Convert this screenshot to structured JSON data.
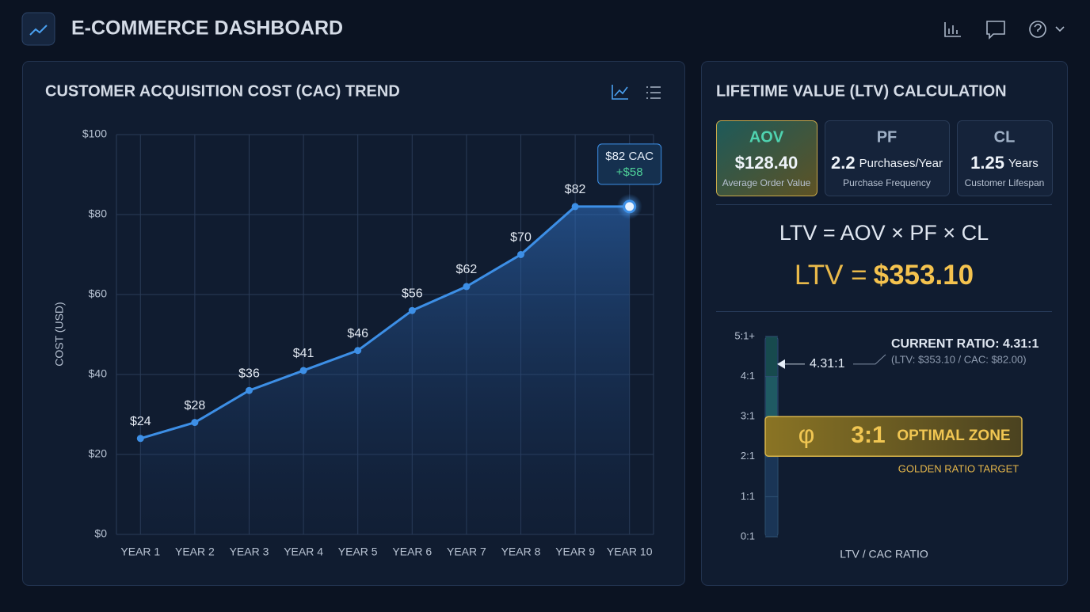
{
  "header": {
    "title": "E-COMMERCE DASHBOARD"
  },
  "chart_data": {
    "type": "line",
    "title": "CUSTOMER ACQUISITION COST (CAC) TREND",
    "ylabel": "COST (USD)",
    "categories": [
      "YEAR 1",
      "YEAR 2",
      "YEAR 3",
      "YEAR 4",
      "YEAR 5",
      "YEAR 6",
      "YEAR 7",
      "YEAR 8",
      "YEAR 9",
      "YEAR 10"
    ],
    "values": [
      24,
      28,
      36,
      41,
      46,
      56,
      62,
      70,
      82,
      82
    ],
    "value_labels": [
      "$24",
      "$28",
      "$36",
      "$41",
      "$46",
      "$56",
      "$62",
      "$70",
      "$82",
      "$82 CAC"
    ],
    "annotation": "+$58",
    "color": "#3d8fe6",
    "ylim": [
      0,
      100
    ],
    "yticks": [
      {
        "value": 0,
        "label": "$0"
      },
      {
        "value": 20,
        "label": "$20"
      },
      {
        "value": 40,
        "label": "$40"
      },
      {
        "value": 60,
        "label": "$60"
      },
      {
        "value": 80,
        "label": "$80"
      },
      {
        "value": 100,
        "label": "$100"
      }
    ],
    "grid": true
  },
  "ltv_panel": {
    "title": "LIFETIME VALUE (LTV) CALCULATION",
    "cards": [
      {
        "abbr": "AOV",
        "value": "$128.40",
        "description": "Average Order Value"
      },
      {
        "abbr": "PF",
        "value": "2.2",
        "unit": "Purchases/Year",
        "description": "Purchase Frequency"
      },
      {
        "abbr": "CL",
        "value": "1.25",
        "unit": "Years",
        "description": "Customer Lifespan"
      }
    ],
    "formula": "LTV = AOV × PF × CL",
    "result": {
      "label": "LTV =",
      "value": "$353.10"
    },
    "gauge": {
      "ylim": [
        0,
        5
      ],
      "ticks": [
        {
          "value": 0,
          "label": "0:1"
        },
        {
          "value": 1,
          "label": "1:1"
        },
        {
          "value": 2,
          "label": "2:1"
        },
        {
          "value": 3,
          "label": "3:1"
        },
        {
          "value": 4,
          "label": "4:1"
        },
        {
          "value": 5,
          "label": "5:1+"
        }
      ],
      "value": 4.31,
      "value_label": "4.31:1",
      "current_title": "CURRENT RATIO: 4.31:1",
      "current_detail": "(LTV: $353.10 / CAC: $82.00)",
      "zone": {
        "symbol": "φ",
        "value": 3,
        "label": "3:1",
        "title": "OPTIMAL ZONE",
        "caption": "GOLDEN RATIO TARGET"
      },
      "axis_title": "LTV / CAC RATIO"
    }
  }
}
